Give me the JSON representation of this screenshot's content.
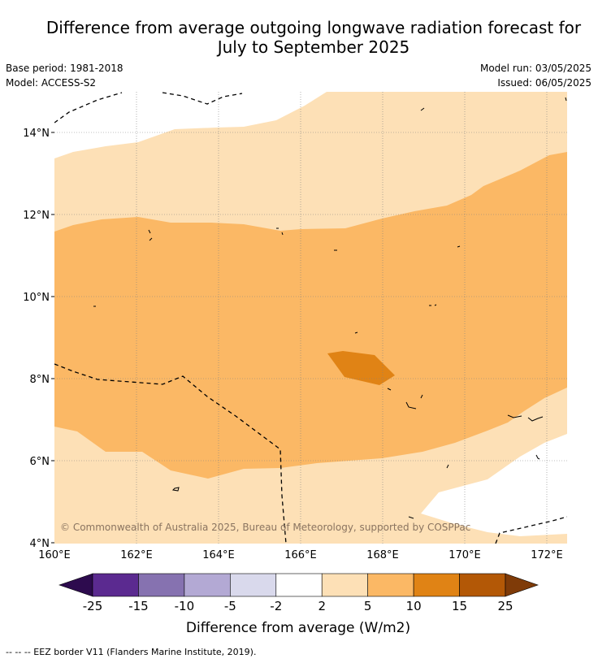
{
  "title_line1": "Difference from average outgoing longwave radiation forecast for",
  "title_line2": "July to September 2025",
  "base_period": "Base period: 1981-2018",
  "model": "Model: ACCESS-S2",
  "model_run": "Model run: 03/05/2025",
  "issued": "Issued: 06/05/2025",
  "copyright": "© Commonwealth of Australia 2025, Bureau of Meteorology, supported by COSPPac",
  "map": {
    "lat_labels": [
      "14°N",
      "12°N",
      "10°N",
      "8°N",
      "6°N",
      "4°N"
    ],
    "lon_labels": [
      "160°E",
      "162°E",
      "164°E",
      "166°E",
      "168°E",
      "170°E",
      "172°E"
    ],
    "band_colors": {
      "white": "#ffffff",
      "light": "#fde0b6",
      "medium": "#fbb865",
      "dark": "#e08315"
    }
  },
  "colorbar": {
    "label": "Difference from average (W/m2)",
    "ticks": [
      "-25",
      "-15",
      "-10",
      "-5",
      "-2",
      "2",
      "5",
      "10",
      "15",
      "25"
    ],
    "colors": [
      "#5b2a90",
      "#8672b0",
      "#b3a9d4",
      "#d9d9ec",
      "#ffffff",
      "#fde0b6",
      "#fbb865",
      "#e08315",
      "#b35806"
    ],
    "low_extend_color": "#2d0b4e",
    "high_extend_color": "#7f3b08"
  },
  "footer": "--  --  -- EEZ border V11 (Flanders Marine Institute, 2019)."
}
